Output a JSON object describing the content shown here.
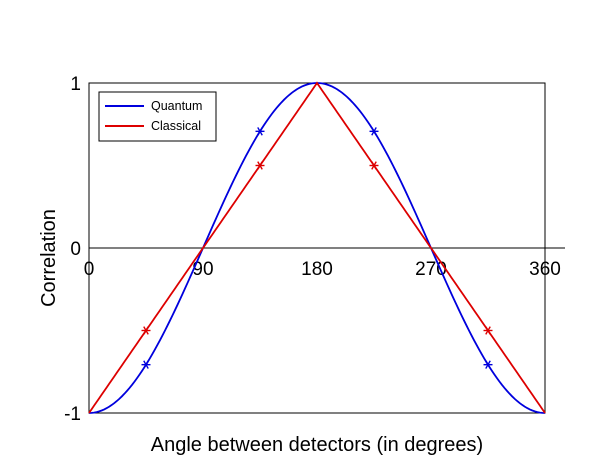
{
  "chart_data": {
    "type": "line",
    "title": "",
    "xlabel": "Angle between detectors (in degrees)",
    "ylabel": "Correlation",
    "xlim": [
      0,
      360
    ],
    "ylim": [
      -1,
      1
    ],
    "x_ticks": [
      {
        "value": 0,
        "label": "0"
      },
      {
        "value": 90,
        "label": "90"
      },
      {
        "value": 180,
        "label": "180"
      },
      {
        "value": 270,
        "label": "270"
      },
      {
        "value": 360,
        "label": "360"
      }
    ],
    "y_ticks": [
      {
        "value": -1,
        "label": "-1"
      },
      {
        "value": 0,
        "label": "0"
      },
      {
        "value": 1,
        "label": "1"
      }
    ],
    "legend_position": "top-left",
    "grid": false,
    "series": [
      {
        "name": "Quantum",
        "color": "#0000dd",
        "function": "-cos",
        "x": [
          0,
          45,
          90,
          135,
          180,
          225,
          270,
          315,
          360
        ],
        "values": [
          -1,
          -0.707,
          0,
          0.707,
          1,
          0.707,
          0,
          -0.707,
          -1
        ],
        "markers_at": [
          45,
          135,
          225,
          315
        ]
      },
      {
        "name": "Classical",
        "color": "#dd0000",
        "function": "triangle",
        "x": [
          0,
          45,
          90,
          135,
          180,
          225,
          270,
          315,
          360
        ],
        "values": [
          -1,
          -0.5,
          0,
          0.5,
          1,
          0.5,
          0,
          -0.5,
          -1
        ],
        "markers_at": [
          45,
          135,
          225,
          315
        ]
      }
    ]
  }
}
